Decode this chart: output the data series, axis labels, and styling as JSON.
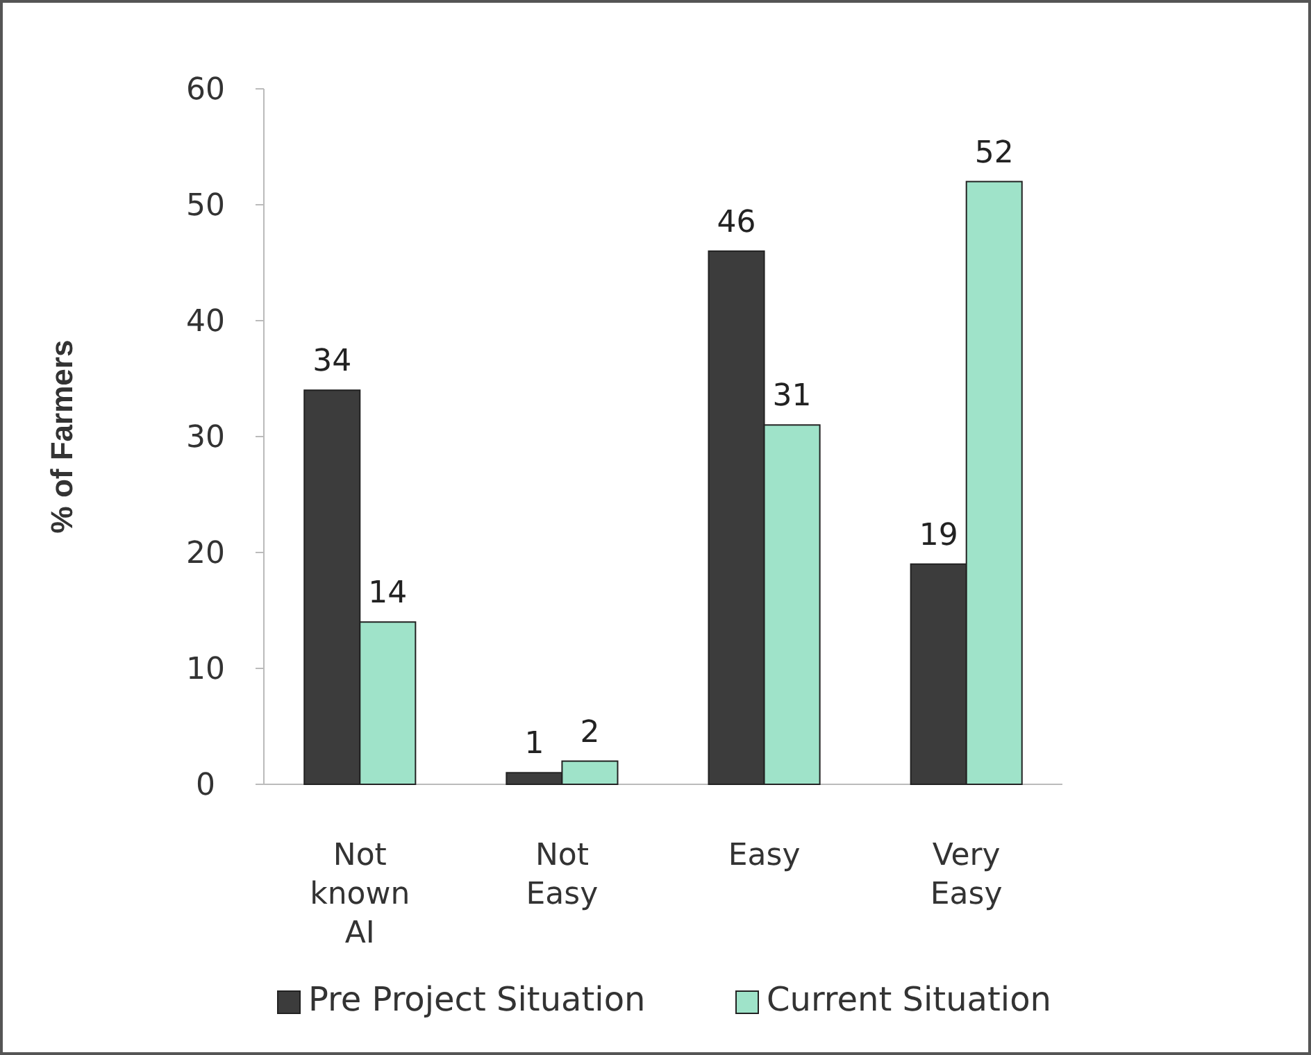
{
  "chart_data": {
    "type": "bar",
    "ylabel": "% of Farmers",
    "categories": [
      "Not known AI",
      "Not Easy",
      "Easy",
      "Very Easy"
    ],
    "series": [
      {
        "name": "Pre Project Situation",
        "color": "#3c3c3c",
        "values": [
          34,
          1,
          46,
          19
        ]
      },
      {
        "name": "Current Situation",
        "color": "#9fe3c9",
        "values": [
          14,
          2,
          31,
          52
        ]
      }
    ],
    "ylim": [
      0,
      60
    ],
    "yticks": [
      0,
      10,
      20,
      30,
      40,
      50,
      60
    ],
    "data_labels": true,
    "legend": "bottom",
    "grid": false
  }
}
